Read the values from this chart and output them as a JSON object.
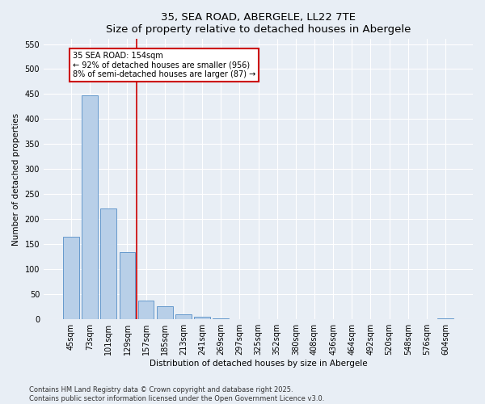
{
  "title1": "35, SEA ROAD, ABERGELE, LL22 7TE",
  "title2": "Size of property relative to detached houses in Abergele",
  "xlabel": "Distribution of detached houses by size in Abergele",
  "ylabel": "Number of detached properties",
  "categories": [
    "45sqm",
    "73sqm",
    "101sqm",
    "129sqm",
    "157sqm",
    "185sqm",
    "213sqm",
    "241sqm",
    "269sqm",
    "297sqm",
    "325sqm",
    "352sqm",
    "380sqm",
    "408sqm",
    "436sqm",
    "464sqm",
    "492sqm",
    "520sqm",
    "548sqm",
    "576sqm",
    "604sqm"
  ],
  "values": [
    165,
    448,
    222,
    134,
    38,
    26,
    10,
    5,
    2,
    1,
    0,
    0,
    0,
    0,
    0,
    0,
    0,
    0,
    0,
    0,
    2
  ],
  "bar_color": "#b8cfe8",
  "bar_edge_color": "#6699cc",
  "vline_x": 3.5,
  "vline_color": "#cc0000",
  "annotation_box_text": "35 SEA ROAD: 154sqm\n← 92% of detached houses are smaller (956)\n8% of semi-detached houses are larger (87) →",
  "annotation_box_color": "#cc0000",
  "annotation_box_fill": "#ffffff",
  "ylim": [
    0,
    560
  ],
  "yticks": [
    0,
    50,
    100,
    150,
    200,
    250,
    300,
    350,
    400,
    450,
    500,
    550
  ],
  "footer1": "Contains HM Land Registry data © Crown copyright and database right 2025.",
  "footer2": "Contains public sector information licensed under the Open Government Licence v3.0.",
  "bg_color": "#e8eef5",
  "plot_bg_color": "#e8eef5",
  "title_fontsize": 9.5,
  "axis_label_fontsize": 7.5,
  "tick_fontsize": 7,
  "annotation_fontsize": 7,
  "footer_fontsize": 6
}
